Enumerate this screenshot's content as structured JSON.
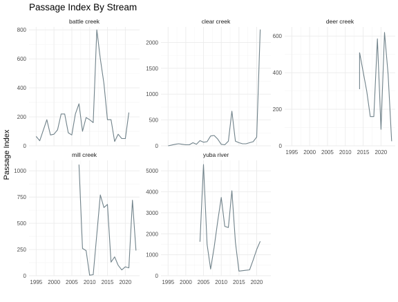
{
  "chart": {
    "title": "Passage Index By Stream",
    "ylabel": "Passage Index",
    "grid": true,
    "colors": {
      "line": "#6f8189",
      "grid_major": "#ebebeb",
      "grid_minor": "#f5f5f5",
      "tick_text": "#4d4d4d",
      "strip_text": "#1a1a1a",
      "title": "#000000"
    }
  },
  "chart_data": [
    {
      "type": "line",
      "panel": "battle creek",
      "xlim": [
        1993,
        2024
      ],
      "ylim": [
        0,
        820
      ],
      "yticks": [
        0,
        200,
        400,
        600,
        800
      ],
      "xticks": [
        1995,
        2000,
        2005,
        2010,
        2015,
        2020
      ],
      "show_xticks": false,
      "x": [
        1995,
        1996,
        1998,
        1999,
        2000,
        2001,
        2002,
        2003,
        2004,
        2005,
        2006,
        2007,
        2008,
        2009,
        2010,
        2011,
        2012,
        2013,
        2014,
        2015,
        2016,
        2017,
        2018,
        2019,
        2020,
        2021
      ],
      "y": [
        65,
        35,
        180,
        75,
        80,
        110,
        220,
        220,
        90,
        75,
        220,
        290,
        100,
        195,
        180,
        160,
        800,
        600,
        430,
        180,
        180,
        30,
        80,
        50,
        50,
        230
      ]
    },
    {
      "type": "line",
      "panel": "clear creek",
      "xlim": [
        1993,
        2024
      ],
      "ylim": [
        0,
        2300
      ],
      "yticks": [
        0,
        500,
        1000,
        1500,
        2000
      ],
      "xticks": [
        1995,
        2000,
        2005,
        2010,
        2015,
        2020
      ],
      "show_xticks": false,
      "x": [
        1995,
        1997,
        1998,
        1999,
        2000,
        2001,
        2002,
        2003,
        2004,
        2005,
        2006,
        2007,
        2008,
        2009,
        2010,
        2011,
        2012,
        2013,
        2014,
        2015,
        2016,
        2017,
        2018,
        2019,
        2020,
        2021
      ],
      "y": [
        0,
        30,
        40,
        30,
        20,
        20,
        60,
        30,
        100,
        70,
        80,
        190,
        200,
        130,
        30,
        20,
        90,
        670,
        90,
        60,
        40,
        40,
        60,
        80,
        170,
        2250
      ]
    },
    {
      "type": "line",
      "panel": "deer creek",
      "xlim": [
        1993,
        2024
      ],
      "ylim": [
        0,
        650
      ],
      "yticks": [
        0,
        200,
        400,
        600
      ],
      "xticks": [
        1995,
        2000,
        2005,
        2010,
        2015,
        2020
      ],
      "show_xticks": true,
      "segments": [
        {
          "x": [
            2014,
            2014
          ],
          "y": [
            310,
            510
          ]
        },
        {
          "x": [
            2014,
            2016,
            2017,
            2018,
            2019,
            2020,
            2021,
            2022,
            2023
          ],
          "y": [
            510,
            300,
            160,
            160,
            585,
            90,
            620,
            390,
            25
          ]
        }
      ]
    },
    {
      "type": "line",
      "panel": "mill creek",
      "xlim": [
        1993,
        2024
      ],
      "ylim": [
        0,
        1100
      ],
      "yticks": [
        0,
        250,
        500,
        750,
        1000
      ],
      "xticks": [
        1995,
        2000,
        2005,
        2010,
        2015,
        2020
      ],
      "show_xticks": true,
      "x": [
        2007,
        2008,
        2009,
        2010,
        2011,
        2013,
        2014,
        2015,
        2016,
        2017,
        2018,
        2019,
        2020,
        2021,
        2022,
        2023
      ],
      "y": [
        1060,
        260,
        240,
        5,
        10,
        770,
        650,
        680,
        130,
        180,
        100,
        55,
        85,
        75,
        720,
        240
      ]
    },
    {
      "type": "line",
      "panel": "yuba river",
      "xlim": [
        1993,
        2024
      ],
      "ylim": [
        0,
        5500
      ],
      "yticks": [
        0,
        1000,
        2000,
        3000,
        4000,
        5000
      ],
      "xticks": [
        1995,
        2000,
        2005,
        2010,
        2015,
        2020
      ],
      "show_xticks": true,
      "x": [
        2004,
        2005,
        2006,
        2007,
        2008,
        2009,
        2010,
        2011,
        2012,
        2013,
        2014,
        2015,
        2016,
        2017,
        2018,
        2019,
        2020,
        2021
      ],
      "y": [
        1620,
        5300,
        1500,
        320,
        1350,
        2600,
        3730,
        2350,
        2300,
        4050,
        1600,
        220,
        240,
        260,
        280,
        750,
        1250,
        1640
      ]
    }
  ]
}
